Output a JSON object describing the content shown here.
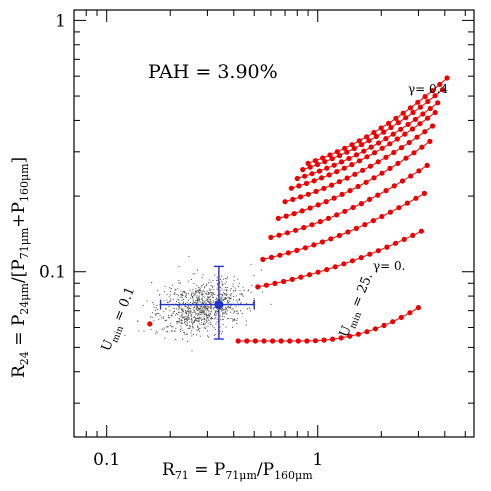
{
  "chart_data": {
    "type": "scatter",
    "title": "",
    "xscale": "log",
    "yscale": "log",
    "xlim": [
      0.07,
      5.5
    ],
    "ylim": [
      0.022,
      1.1
    ],
    "xticks": [
      {
        "value": 0.1,
        "label": "0.1"
      },
      {
        "value": 1,
        "label": "1"
      }
    ],
    "yticks": [
      {
        "value": 0.1,
        "label": "0.1"
      },
      {
        "value": 1,
        "label": "1"
      }
    ],
    "xlabel": {
      "parts": [
        "R",
        "71",
        " = P",
        "71μm",
        "/P",
        "160μm"
      ]
    },
    "ylabel": {
      "parts": [
        "R",
        "24",
        " = P",
        "24μm",
        "/[P",
        "71μm",
        "+P",
        "160μm",
        "]"
      ]
    },
    "annotations": {
      "pah": "PAH = 3.90%",
      "gamma_top": "γ= 0.4",
      "gamma_bottom": "γ= 0.",
      "umin_left_sym": "U",
      "umin_left_sub": "min",
      "umin_left_val": " = 0.1",
      "umin_right_sym": "U",
      "umin_right_sub": "min",
      "umin_right_val": " = 25."
    },
    "model_curves": [
      {
        "x0": 0.42,
        "x1": 3.0,
        "y0": 0.053,
        "y1": 0.072,
        "npts": 22,
        "shape": "u"
      },
      {
        "x0": 0.52,
        "x1": 3.1,
        "y0": 0.087,
        "y1": 0.145,
        "npts": 20,
        "shape": "rise"
      },
      {
        "x0": 0.55,
        "x1": 3.2,
        "y0": 0.112,
        "y1": 0.205,
        "npts": 20,
        "shape": "rise"
      },
      {
        "x0": 0.6,
        "x1": 3.3,
        "y0": 0.137,
        "y1": 0.265,
        "npts": 20,
        "shape": "rise"
      },
      {
        "x0": 0.65,
        "x1": 3.4,
        "y0": 0.163,
        "y1": 0.33,
        "npts": 20,
        "shape": "rise"
      },
      {
        "x0": 0.7,
        "x1": 3.5,
        "y0": 0.19,
        "y1": 0.38,
        "npts": 20,
        "shape": "rise"
      },
      {
        "x0": 0.75,
        "x1": 3.6,
        "y0": 0.215,
        "y1": 0.43,
        "npts": 20,
        "shape": "rise"
      },
      {
        "x0": 0.8,
        "x1": 3.7,
        "y0": 0.235,
        "y1": 0.47,
        "npts": 20,
        "shape": "rise"
      },
      {
        "x0": 0.85,
        "x1": 3.9,
        "y0": 0.255,
        "y1": 0.53,
        "npts": 20,
        "shape": "rise"
      },
      {
        "x0": 0.9,
        "x1": 4.1,
        "y0": 0.27,
        "y1": 0.59,
        "npts": 20,
        "shape": "rise"
      }
    ],
    "curve_color": "#ee0000",
    "point_cloud": {
      "center_x": 0.28,
      "center_y": 0.073,
      "count": 900,
      "color": "#444444"
    },
    "measurement": {
      "x": 0.34,
      "y": 0.074,
      "x_err": [
        0.18,
        0.5
      ],
      "y_err": [
        0.054,
        0.105
      ],
      "color": "#2233cc"
    }
  }
}
